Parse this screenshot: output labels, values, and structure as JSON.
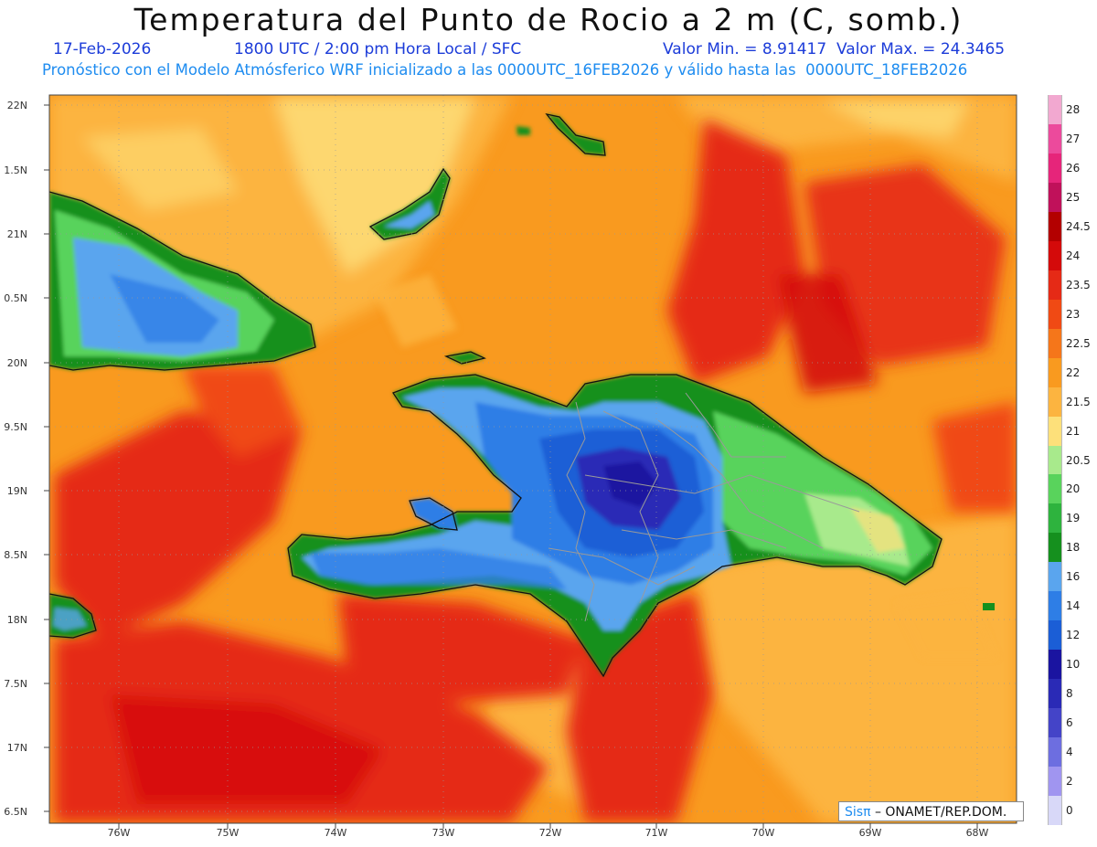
{
  "header": {
    "title": "Temperatura del Punto de Rocio a 2 m (C, somb.)",
    "date": "17-Feb-2026",
    "time": "1800 UTC / 2:00 pm Hora Local / SFC",
    "minmax": "Valor Min. = 8.91417  Valor Max. = 24.3465",
    "model_info": "Pronóstico con el Modelo Atmósferico WRF inicializado a las 0000UTC_16FEB2026 y válido hasta las  0000UTC_18FEB2026"
  },
  "axes": {
    "lat_labels": [
      "22N",
      "1.5N",
      "21N",
      "0.5N",
      "20N",
      "9.5N",
      "19N",
      "8.5N",
      "18N",
      "7.5N",
      "17N",
      "6.5N"
    ],
    "lon_labels": [
      "76W",
      "75W",
      "74W",
      "73W",
      "72W",
      "71W",
      "70W",
      "69W",
      "68W"
    ]
  },
  "colorbar": {
    "labels": [
      "28",
      "27",
      "26",
      "25",
      "24.5",
      "24",
      "23.5",
      "23",
      "22.5",
      "22",
      "21.5",
      "21",
      "20.5",
      "20",
      "19",
      "18",
      "16",
      "14",
      "12",
      "10",
      "8",
      "6",
      "4",
      "2",
      "0"
    ],
    "colors": [
      "#f2a8d0",
      "#ec4a9c",
      "#e6257a",
      "#c0115a",
      "#b30000",
      "#d40a0a",
      "#e52a16",
      "#f04a14",
      "#f5761a",
      "#f99a1f",
      "#fcb440",
      "#fde07a",
      "#a8ea8c",
      "#59d35c",
      "#2eb33e",
      "#15901e",
      "#5aa5ee",
      "#2e7ee6",
      "#1b5ed6",
      "#1a14a0",
      "#2a2ab6",
      "#4444c8",
      "#6d6ee0",
      "#a095f0",
      "#d8d8f8"
    ]
  },
  "credit": {
    "sis": "Sisπ",
    "text": "– ONAMET/REP.DOM."
  }
}
